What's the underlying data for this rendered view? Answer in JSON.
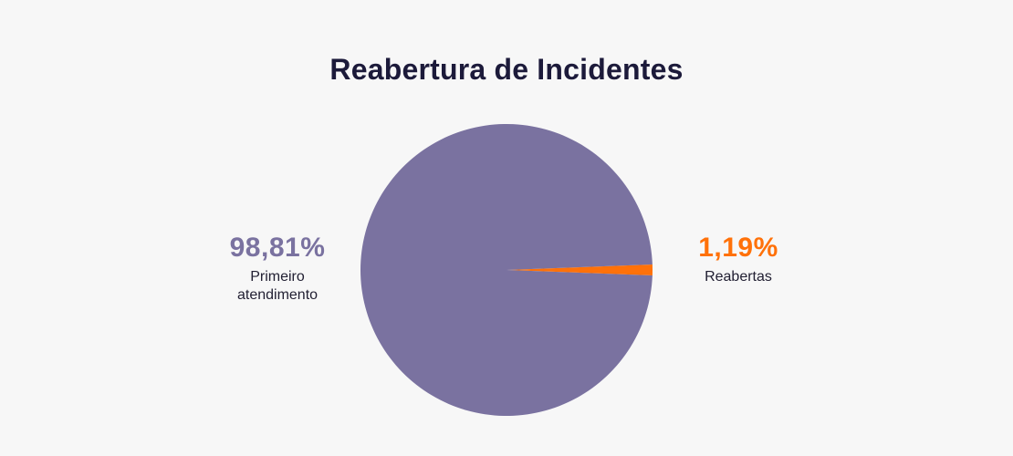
{
  "chart_data": {
    "type": "pie",
    "title": "Reabertura de Incidentes",
    "slices": [
      {
        "label": "Primeiro atendimento",
        "value": 98.81,
        "value_label": "98,81%",
        "color": "#7a72a0"
      },
      {
        "label": "Reabertas",
        "value": 1.19,
        "value_label": "1,19%",
        "color": "#ff7109"
      }
    ],
    "legend": "none"
  }
}
